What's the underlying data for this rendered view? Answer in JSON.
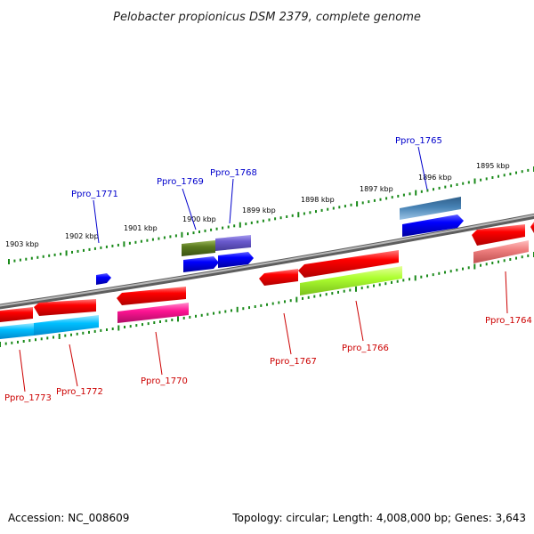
{
  "title": "Pelobacter propionicus DSM 2379, complete genome",
  "footer": {
    "accession": "Accession: NC_008609",
    "topology": "Topology: circular; Length: 4,008,000 bp; Genes: 3,643"
  },
  "scale_labels": [
    "1903 kbp",
    "1902 kbp",
    "1901 kbp",
    "1900 kbp",
    "1899 kbp",
    "1898 kbp",
    "1897 kbp",
    "1896 kbp",
    "1895 kbp"
  ],
  "genes_top_strand": [
    {
      "locus": "Ppro_1771",
      "color": "#0000ff"
    },
    {
      "locus": "Ppro_1769",
      "colors": [
        "#5a7a1e",
        "#0000ff"
      ]
    },
    {
      "locus": "Ppro_1768",
      "colors": [
        "#6a5acd",
        "#0000ff"
      ]
    },
    {
      "locus": "Ppro_1765",
      "colors": [
        "#4682b4",
        "#0000ff"
      ]
    }
  ],
  "genes_bottom_strand": [
    {
      "locus": "Ppro_1773",
      "colors": [
        "#ff0000",
        "#00bfff"
      ]
    },
    {
      "locus": "Ppro_1772",
      "colors": [
        "#ff0000",
        "#00bfff"
      ]
    },
    {
      "locus": "Ppro_1770",
      "colors": [
        "#ff0000",
        "#ff1493"
      ]
    },
    {
      "locus": "Ppro_1767",
      "color": "#ff0000"
    },
    {
      "locus": "Ppro_1766",
      "colors": [
        "#ff0000",
        "#adff2f"
      ]
    },
    {
      "locus": "Ppro_1764",
      "colors": [
        "#ff0000",
        "#f08080"
      ]
    }
  ],
  "colors": {
    "backbone": "#8a8a8a",
    "scale_dots": "#1a8a1a",
    "top_label": "#0000cc",
    "bottom_label": "#cc0000"
  }
}
